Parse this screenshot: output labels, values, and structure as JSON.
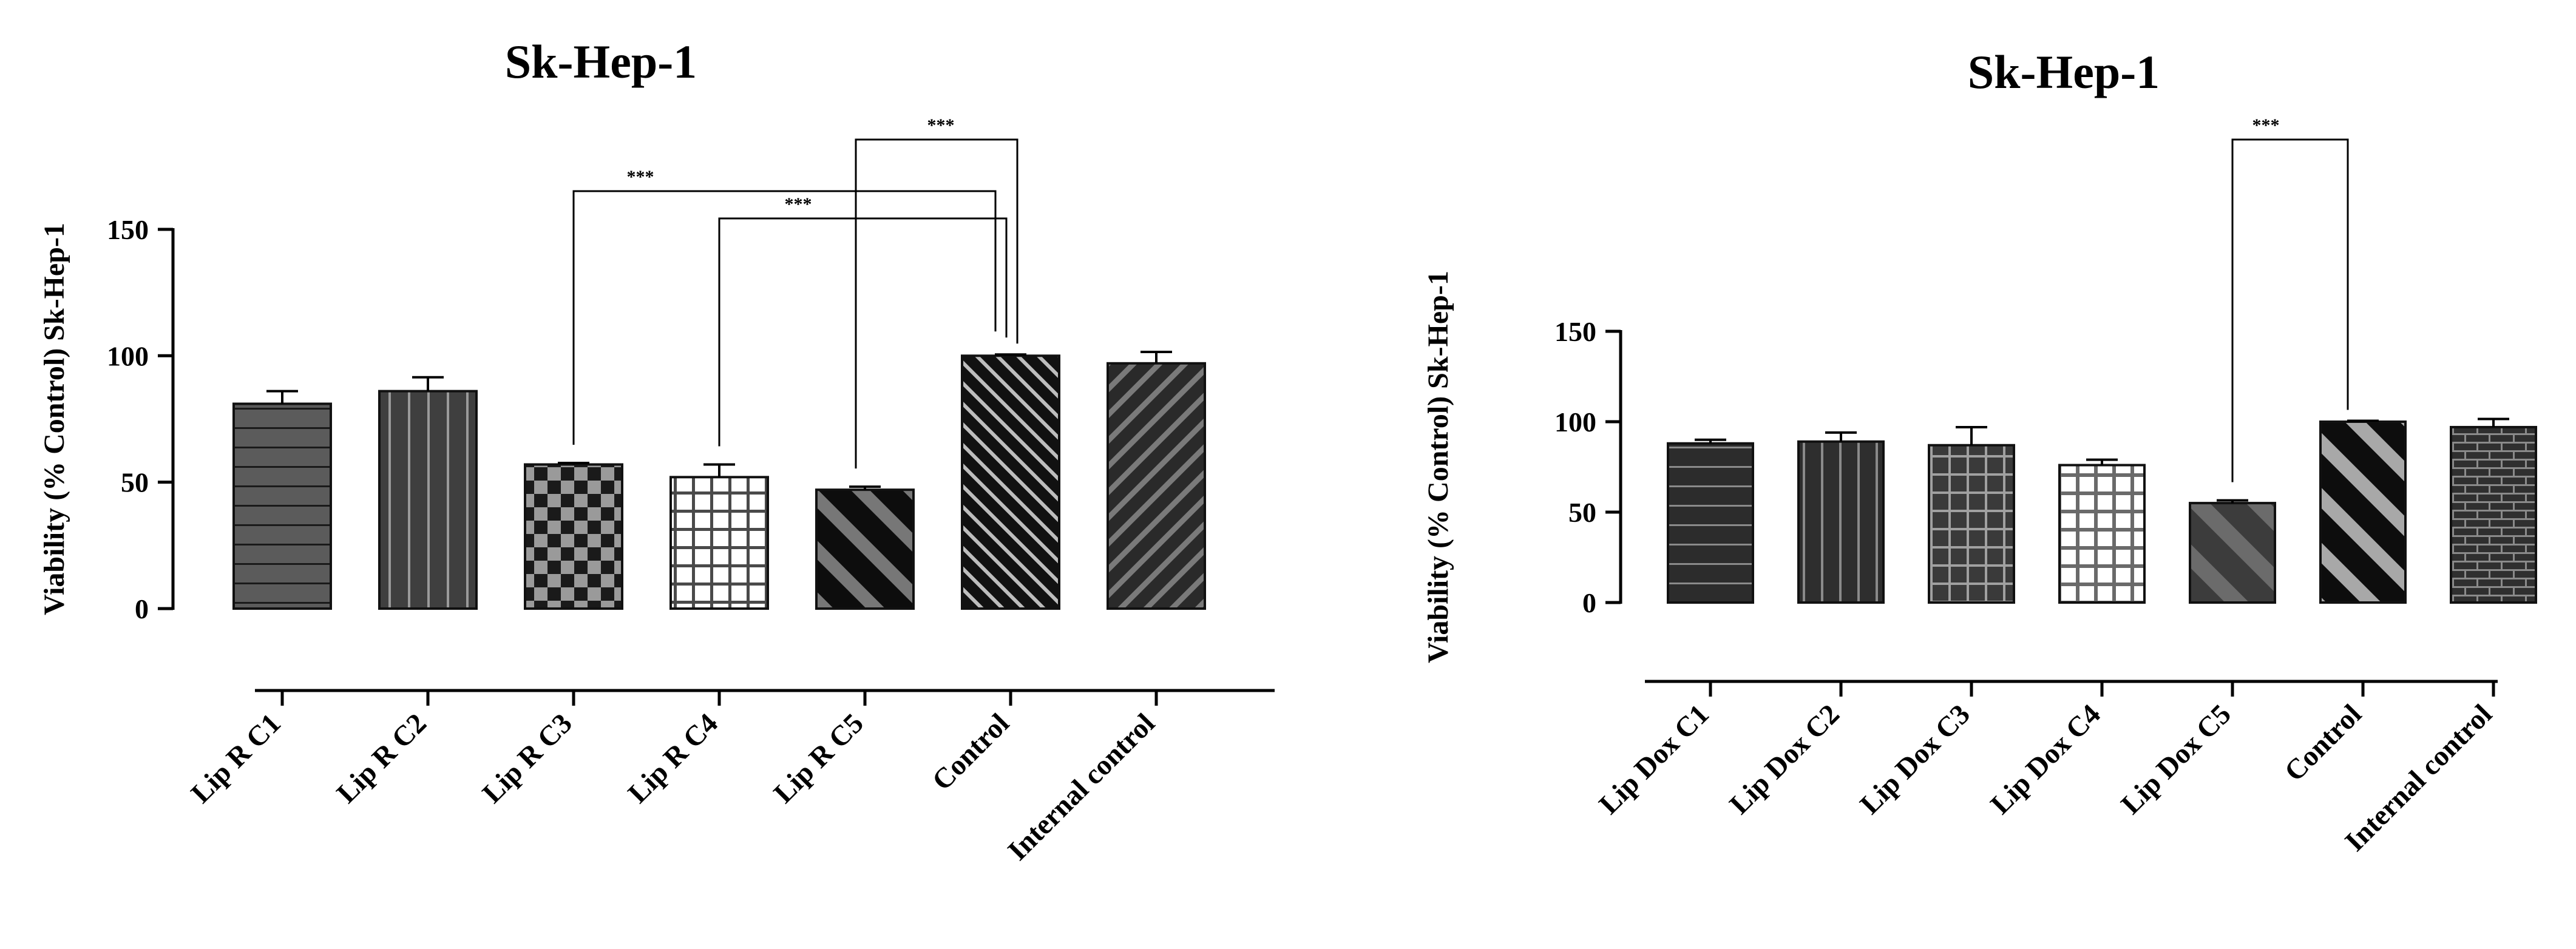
{
  "chart_data": [
    {
      "type": "bar",
      "title": "Sk-Hep-1",
      "xlabel": "",
      "ylabel": "Viability (% Control) Sk-Hep-1",
      "ylim": [
        0,
        150
      ],
      "yticks": [
        0,
        50,
        100,
        150
      ],
      "categories": [
        "Lip R C1",
        "Lip R C2",
        "Lip R C3",
        "Lip R C4",
        "Lip R C5",
        "Control",
        "Internal control"
      ],
      "values": [
        81,
        86,
        57,
        52,
        47,
        100,
        97
      ],
      "errors": [
        5,
        5.5,
        0.6,
        5,
        1.2,
        0.5,
        4.5
      ],
      "patterns": [
        "hlines",
        "vlines",
        "checker",
        "grid",
        "diag-wide",
        "diag-fine-dark",
        "diag-fine-gray"
      ],
      "significance": [
        {
          "from": "Lip R C3",
          "to": "Control",
          "label": "***"
        },
        {
          "from": "Lip R C4",
          "to": "Control",
          "label": "***"
        },
        {
          "from": "Lip R C5",
          "to": "Control",
          "label": "***"
        }
      ]
    },
    {
      "type": "bar",
      "title": "Sk-Hep-1",
      "xlabel": "",
      "ylabel": "Viability (% Control) Sk-Hep-1",
      "ylim": [
        0,
        150
      ],
      "yticks": [
        0,
        50,
        100,
        150
      ],
      "categories": [
        "Lip Dox C1",
        "Lip Dox C2",
        "Lip Dox C3",
        "Lip Dox C4",
        "Lip Dox C5",
        "Control",
        "Internal control"
      ],
      "values": [
        88,
        89,
        87,
        76,
        55,
        100,
        97
      ],
      "errors": [
        2,
        5,
        10,
        3,
        1.5,
        0.5,
        4.5
      ],
      "patterns": [
        "hlines-dark",
        "vlines-dark",
        "grid-dark",
        "grid-white",
        "diag-wide-gray",
        "diag-wide-light",
        "brick"
      ],
      "significance": [
        {
          "from": "Lip Dox C5",
          "to": "Control",
          "label": "***"
        }
      ]
    }
  ]
}
